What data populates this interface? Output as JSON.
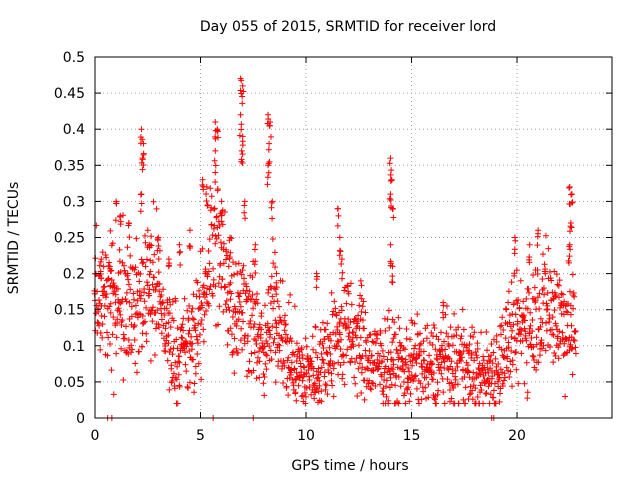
{
  "chart_data": {
    "type": "scatter",
    "title": "Day 055 of 2015, SRMTID for receiver lord",
    "xlabel": "GPS time / hours",
    "ylabel": "SRMTID / TECUs",
    "xlim": [
      0,
      24.5
    ],
    "ylim": [
      0,
      0.5
    ],
    "xticks": [
      0,
      5,
      10,
      15,
      20
    ],
    "yticks": [
      0,
      0.05,
      0.1,
      0.15,
      0.2,
      0.25,
      0.3,
      0.35,
      0.4,
      0.45,
      0.5
    ],
    "grid": true,
    "legend": "none",
    "marker": "plus",
    "color": "#ff0000",
    "trend_x": [
      0.0,
      0.5,
      1.0,
      1.5,
      2.0,
      2.5,
      3.0,
      3.5,
      4.0,
      4.5,
      5.0,
      5.5,
      6.0,
      6.5,
      7.0,
      7.5,
      8.0,
      8.5,
      9.0,
      9.5,
      10.0,
      10.5,
      11.0,
      11.5,
      12.0,
      12.5,
      13.0,
      13.5,
      14.0,
      14.5,
      15.0,
      15.5,
      16.0,
      16.5,
      17.0,
      17.5,
      18.0,
      18.5,
      19.0,
      19.5,
      20.0,
      20.5,
      21.0,
      21.5,
      22.0,
      22.5,
      22.8
    ],
    "trend_y": [
      0.15,
      0.16,
      0.15,
      0.18,
      0.14,
      0.2,
      0.17,
      0.11,
      0.09,
      0.1,
      0.13,
      0.25,
      0.22,
      0.17,
      0.15,
      0.14,
      0.08,
      0.16,
      0.1,
      0.07,
      0.06,
      0.07,
      0.09,
      0.11,
      0.12,
      0.1,
      0.08,
      0.07,
      0.08,
      0.07,
      0.08,
      0.07,
      0.07,
      0.08,
      0.07,
      0.08,
      0.06,
      0.06,
      0.07,
      0.1,
      0.12,
      0.13,
      0.15,
      0.16,
      0.14,
      0.13,
      0.12
    ],
    "spikes": [
      {
        "x": 0.0,
        "y": 0.2
      },
      {
        "x": 0.3,
        "y": 0.22
      },
      {
        "x": 0.7,
        "y": 0.21
      },
      {
        "x": 1.0,
        "y": 0.3
      },
      {
        "x": 1.2,
        "y": 0.28
      },
      {
        "x": 1.6,
        "y": 0.27
      },
      {
        "x": 2.2,
        "y": 0.4
      },
      {
        "x": 2.3,
        "y": 0.38
      },
      {
        "x": 2.25,
        "y": 0.36
      },
      {
        "x": 2.2,
        "y": 0.31
      },
      {
        "x": 2.6,
        "y": 0.24
      },
      {
        "x": 3.0,
        "y": 0.25
      },
      {
        "x": 3.5,
        "y": 0.22
      },
      {
        "x": 4.0,
        "y": 0.24
      },
      {
        "x": 4.5,
        "y": 0.26
      },
      {
        "x": 5.1,
        "y": 0.33
      },
      {
        "x": 5.3,
        "y": 0.32
      },
      {
        "x": 5.7,
        "y": 0.41
      },
      {
        "x": 5.8,
        "y": 0.4
      },
      {
        "x": 5.7,
        "y": 0.37
      },
      {
        "x": 6.0,
        "y": 0.3
      },
      {
        "x": 6.4,
        "y": 0.25
      },
      {
        "x": 6.9,
        "y": 0.47
      },
      {
        "x": 7.0,
        "y": 0.46
      },
      {
        "x": 6.9,
        "y": 0.42
      },
      {
        "x": 7.0,
        "y": 0.39
      },
      {
        "x": 6.95,
        "y": 0.37
      },
      {
        "x": 7.1,
        "y": 0.3
      },
      {
        "x": 7.6,
        "y": 0.24
      },
      {
        "x": 8.2,
        "y": 0.42
      },
      {
        "x": 8.3,
        "y": 0.41
      },
      {
        "x": 8.25,
        "y": 0.38
      },
      {
        "x": 8.2,
        "y": 0.35
      },
      {
        "x": 8.4,
        "y": 0.3
      },
      {
        "x": 8.6,
        "y": 0.2
      },
      {
        "x": 10.5,
        "y": 0.2
      },
      {
        "x": 11.5,
        "y": 0.29
      },
      {
        "x": 11.6,
        "y": 0.25
      },
      {
        "x": 11.7,
        "y": 0.22
      },
      {
        "x": 12.6,
        "y": 0.19
      },
      {
        "x": 14.0,
        "y": 0.36
      },
      {
        "x": 14.05,
        "y": 0.33
      },
      {
        "x": 14.0,
        "y": 0.31
      },
      {
        "x": 14.1,
        "y": 0.29
      },
      {
        "x": 14.0,
        "y": 0.24
      },
      {
        "x": 14.1,
        "y": 0.21
      },
      {
        "x": 16.5,
        "y": 0.16
      },
      {
        "x": 19.9,
        "y": 0.25
      },
      {
        "x": 20.6,
        "y": 0.24
      },
      {
        "x": 21.0,
        "y": 0.26
      },
      {
        "x": 22.5,
        "y": 0.32
      },
      {
        "x": 22.6,
        "y": 0.31
      },
      {
        "x": 22.55,
        "y": 0.27
      },
      {
        "x": 22.5,
        "y": 0.24
      }
    ],
    "zero_points": [
      0.6,
      0.8,
      5.6,
      7.5,
      18.8,
      18.9
    ]
  }
}
